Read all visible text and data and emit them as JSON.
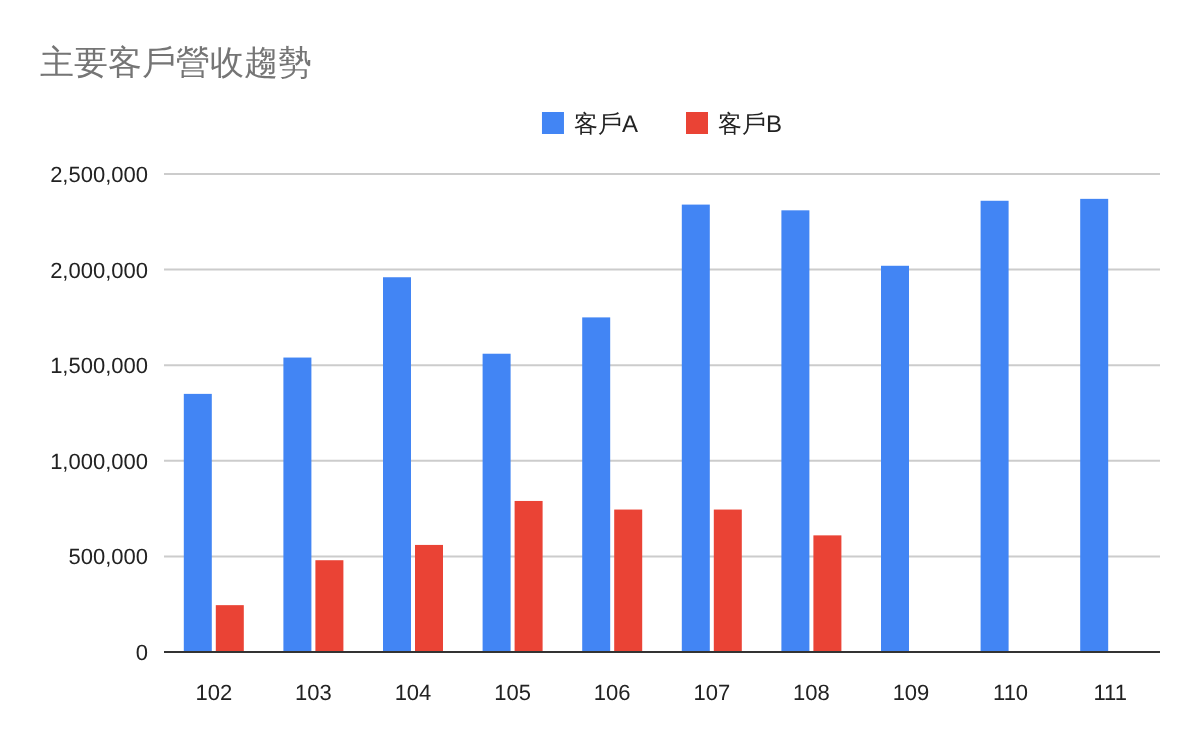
{
  "chart_data": {
    "type": "bar",
    "title": "主要客戶營收趨勢",
    "categories": [
      "102",
      "103",
      "104",
      "105",
      "106",
      "107",
      "108",
      "109",
      "110",
      "111"
    ],
    "series": [
      {
        "name": "客戶A",
        "color": "#4285f4",
        "values": [
          1350000,
          1540000,
          1960000,
          1560000,
          1750000,
          2340000,
          2310000,
          2020000,
          2360000,
          2370000
        ]
      },
      {
        "name": "客戶B",
        "color": "#ea4335",
        "values": [
          245000,
          480000,
          560000,
          790000,
          745000,
          745000,
          610000,
          null,
          null,
          null
        ]
      }
    ],
    "ylim": [
      0,
      2500000
    ],
    "yticks": [
      {
        "value": 0,
        "label": "0"
      },
      {
        "value": 500000,
        "label": "500,000"
      },
      {
        "value": 1000000,
        "label": "1,000,000"
      },
      {
        "value": 1500000,
        "label": "1,500,000"
      },
      {
        "value": 2000000,
        "label": "2,000,000"
      },
      {
        "value": 2500000,
        "label": "2,500,000"
      }
    ],
    "grid": "y",
    "legend": "top"
  }
}
